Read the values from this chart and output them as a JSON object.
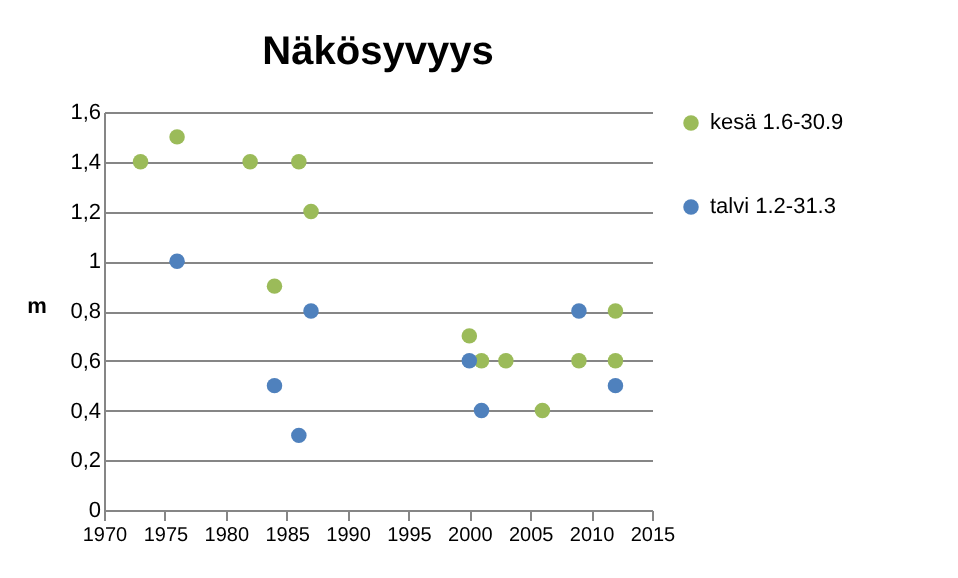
{
  "chart_data": {
    "type": "scatter",
    "title": "Näkösyvyys",
    "ylabel": "m",
    "xlim": [
      1970,
      2015
    ],
    "xticks": [
      1970,
      1975,
      1980,
      1985,
      1990,
      1995,
      2000,
      2005,
      2010,
      2015
    ],
    "ylim": [
      0,
      1.6
    ],
    "yticks": [
      0,
      {
        "value": 0.2,
        "label": "0,2"
      },
      {
        "value": 0.4,
        "label": "0,4"
      },
      {
        "value": 0.6,
        "label": "0,6"
      },
      {
        "value": 0.8,
        "label": "0,8"
      },
      1,
      {
        "value": 1.2,
        "label": "1,2"
      },
      {
        "value": 1.4,
        "label": "1,4"
      },
      {
        "value": 1.6,
        "label": "1,6"
      }
    ],
    "grid": "y",
    "legend": "right",
    "marker": "circle",
    "series": [
      {
        "name": "kesä 1.6-30.9",
        "color": "#9bbb59",
        "x": [
          1973,
          1976,
          1982,
          1986,
          1987,
          1984,
          2000,
          2001,
          2003,
          2006,
          2009,
          2012,
          2012
        ],
        "values": [
          1.4,
          1.5,
          1.4,
          1.4,
          1.2,
          0.9,
          0.7,
          0.6,
          0.6,
          0.4,
          0.6,
          0.8,
          0.6
        ]
      },
      {
        "name": "talvi 1.2-31.3",
        "color": "#4f81bd",
        "x": [
          1976,
          1987,
          1984,
          1986,
          2000,
          2001,
          2009,
          2012
        ],
        "values": [
          1.0,
          0.8,
          0.5,
          0.3,
          0.6,
          0.4,
          0.8,
          0.5
        ]
      }
    ]
  }
}
